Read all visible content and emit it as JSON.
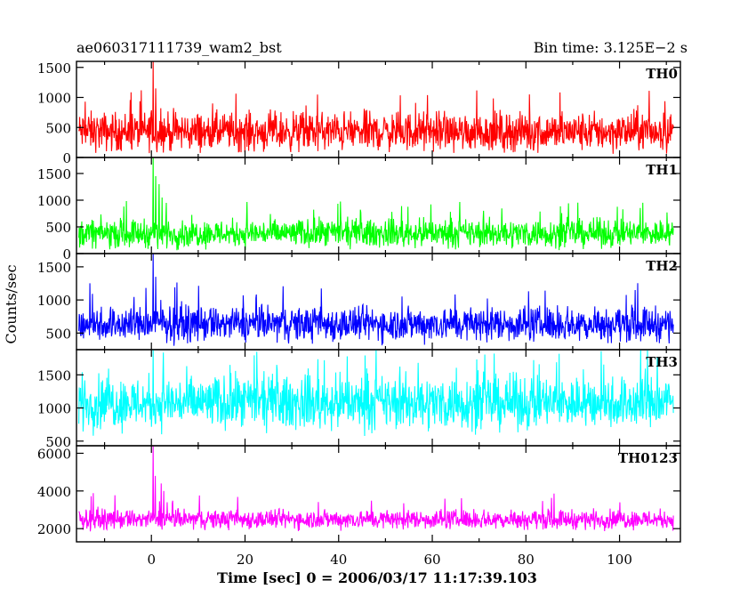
{
  "header": {
    "title": "ae060317111739_wam2_bst",
    "bin_time": "Bin time: 3.125E−2 s"
  },
  "chart_data": {
    "type": "line",
    "xlabel": "Time [sec] 0 = 2006/03/17 11:17:39.103",
    "ylabel": "Counts/sec",
    "xlim": [
      -16,
      113
    ],
    "x_ticks": [
      0,
      20,
      40,
      60,
      80,
      100
    ],
    "x_range_data": [
      -15.5,
      111.5
    ],
    "panels": [
      {
        "name": "TH0",
        "color": "#ff0000",
        "ylim": [
          0,
          1600
        ],
        "yticks": [
          0,
          500,
          1000,
          1500
        ],
        "baseline": 430,
        "spread": 210,
        "floor": 60,
        "noise_max": 1130,
        "bursts": [
          {
            "x": 0.4,
            "y": 1600
          },
          {
            "x": 0.9,
            "y": 1150
          },
          {
            "x": 2.0,
            "y": 820
          }
        ]
      },
      {
        "name": "TH1",
        "color": "#00ff00",
        "ylim": [
          0,
          1800
        ],
        "yticks": [
          0,
          500,
          1000,
          1500
        ],
        "baseline": 380,
        "spread": 170,
        "floor": 60,
        "noise_max": 1000,
        "bursts": [
          {
            "x": 0.4,
            "y": 1800
          },
          {
            "x": 0.9,
            "y": 1450
          },
          {
            "x": 1.6,
            "y": 1300
          },
          {
            "x": 2.3,
            "y": 1050
          },
          {
            "x": 3.2,
            "y": 950
          }
        ]
      },
      {
        "name": "TH2",
        "color": "#0000ff",
        "ylim": [
          250,
          1700
        ],
        "yticks": [
          500,
          1000,
          1500
        ],
        "baseline": 640,
        "spread": 170,
        "floor": 280,
        "noise_max": 1270,
        "bursts": [
          {
            "x": 0.4,
            "y": 1700
          },
          {
            "x": 0.9,
            "y": 1350
          },
          {
            "x": 2.0,
            "y": 1000
          }
        ]
      },
      {
        "name": "TH3",
        "color": "#00ffff",
        "ylim": [
          430,
          1880
        ],
        "yticks": [
          500,
          1000,
          1500
        ],
        "baseline": 1080,
        "spread": 260,
        "floor": 450,
        "noise_max": 1880,
        "bursts": [
          {
            "x": 0.4,
            "y": 1880
          },
          {
            "x": 48.0,
            "y": 1880
          },
          {
            "x": 104.5,
            "y": 1880
          },
          {
            "x": 106.0,
            "y": 1880
          }
        ]
      },
      {
        "name": "TH0123",
        "color": "#ff00ff",
        "ylim": [
          1300,
          6400
        ],
        "yticks": [
          2000,
          4000,
          6000
        ],
        "baseline": 2500,
        "spread": 330,
        "floor": 1450,
        "noise_max": 3900,
        "bursts": [
          {
            "x": 0.4,
            "y": 6400
          },
          {
            "x": 0.8,
            "y": 4800
          },
          {
            "x": 2.1,
            "y": 4400
          },
          {
            "x": 2.6,
            "y": 4000
          },
          {
            "x": 3.4,
            "y": 3400
          }
        ]
      }
    ]
  }
}
